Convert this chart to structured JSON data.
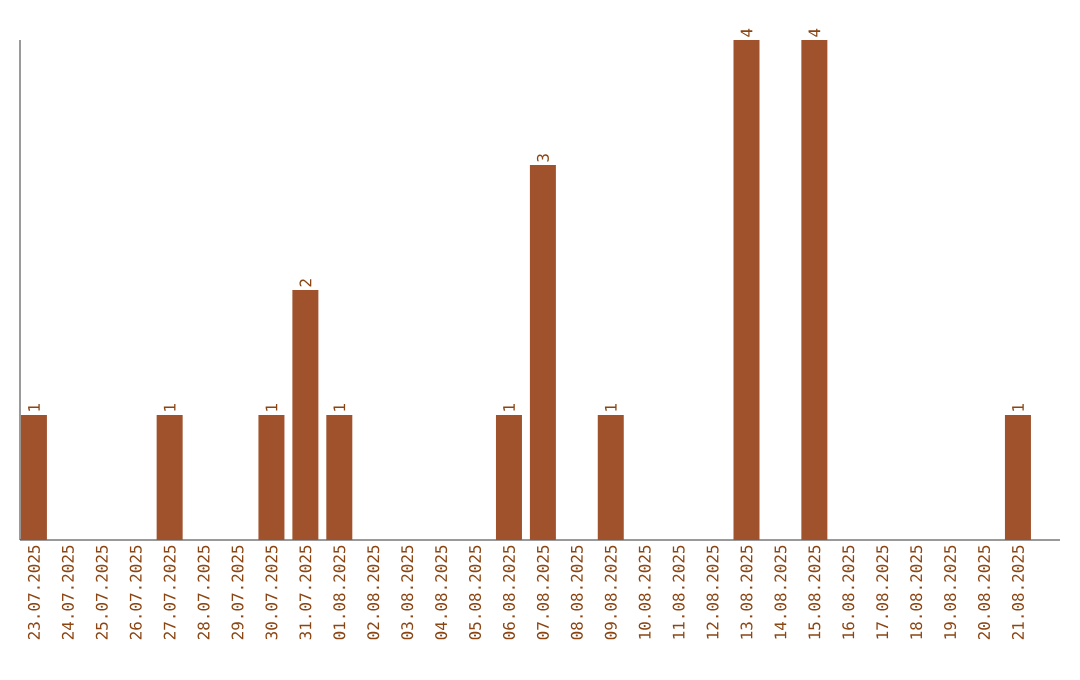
{
  "chart_data": {
    "type": "bar",
    "categories": [
      "23.07.2025",
      "24.07.2025",
      "25.07.2025",
      "26.07.2025",
      "27.07.2025",
      "28.07.2025",
      "29.07.2025",
      "30.07.2025",
      "31.07.2025",
      "01.08.2025",
      "02.08.2025",
      "03.08.2025",
      "04.08.2025",
      "05.08.2025",
      "06.08.2025",
      "07.08.2025",
      "08.08.2025",
      "09.08.2025",
      "10.08.2025",
      "11.08.2025",
      "12.08.2025",
      "13.08.2025",
      "14.08.2025",
      "15.08.2025",
      "16.08.2025",
      "17.08.2025",
      "18.08.2025",
      "19.08.2025",
      "20.08.2025",
      "21.08.2025"
    ],
    "values": [
      1,
      0,
      0,
      0,
      1,
      0,
      0,
      1,
      2,
      1,
      0,
      0,
      0,
      0,
      1,
      3,
      0,
      1,
      0,
      0,
      0,
      4,
      0,
      4,
      0,
      0,
      0,
      0,
      0,
      1
    ],
    "value_labels": [
      "1",
      null,
      null,
      null,
      "1",
      null,
      null,
      "1",
      "2",
      "1",
      null,
      null,
      null,
      null,
      "1",
      "3",
      null,
      "1",
      null,
      null,
      null,
      "4",
      null,
      "4",
      null,
      null,
      null,
      null,
      null,
      "1"
    ],
    "color": "#a0522d",
    "ylim": [
      0,
      4
    ],
    "tick_labels": "x",
    "grid": false
  }
}
